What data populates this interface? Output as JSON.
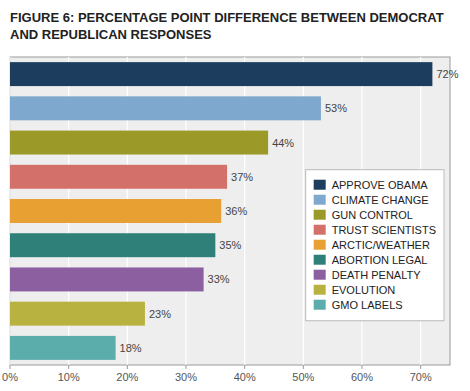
{
  "chart_data": {
    "type": "bar",
    "orientation": "horizontal",
    "title": "FIGURE 6: PERCENTAGE POINT DIFFERENCE BETWEEN DEMOCRAT AND REPUBLICAN RESPONSES",
    "categories": [
      "APPROVE OBAMA",
      "CLIMATE CHANGE",
      "GUN CONTROL",
      "TRUST SCIENTISTS",
      "ARCTIC/WEATHER",
      "ABORTION LEGAL",
      "DEATH PENALTY",
      "EVOLUTION",
      "GMO LABELS"
    ],
    "values": [
      72,
      53,
      44,
      37,
      36,
      35,
      33,
      23,
      18
    ],
    "value_labels": [
      "72%",
      "53%",
      "44%",
      "37%",
      "36%",
      "35%",
      "33%",
      "23%",
      "18%"
    ],
    "colors": [
      "#1c3d5e",
      "#7ea8ce",
      "#9b9a28",
      "#d4706a",
      "#e8a032",
      "#2e8078",
      "#8b5fa0",
      "#b8b240",
      "#5aadaa"
    ],
    "xlim": [
      0,
      75
    ],
    "xticks": [
      {
        "value": 0,
        "label": "0%"
      },
      {
        "value": 10,
        "label": "10%"
      },
      {
        "value": 20,
        "label": "20%"
      },
      {
        "value": 30,
        "label": "30%"
      },
      {
        "value": 40,
        "label": "40%"
      },
      {
        "value": 50,
        "label": "50%"
      },
      {
        "value": 60,
        "label": "60%"
      },
      {
        "value": 70,
        "label": "70%"
      }
    ],
    "grid": true,
    "legend": "right",
    "data_labels": true,
    "tick_labels": "x"
  }
}
